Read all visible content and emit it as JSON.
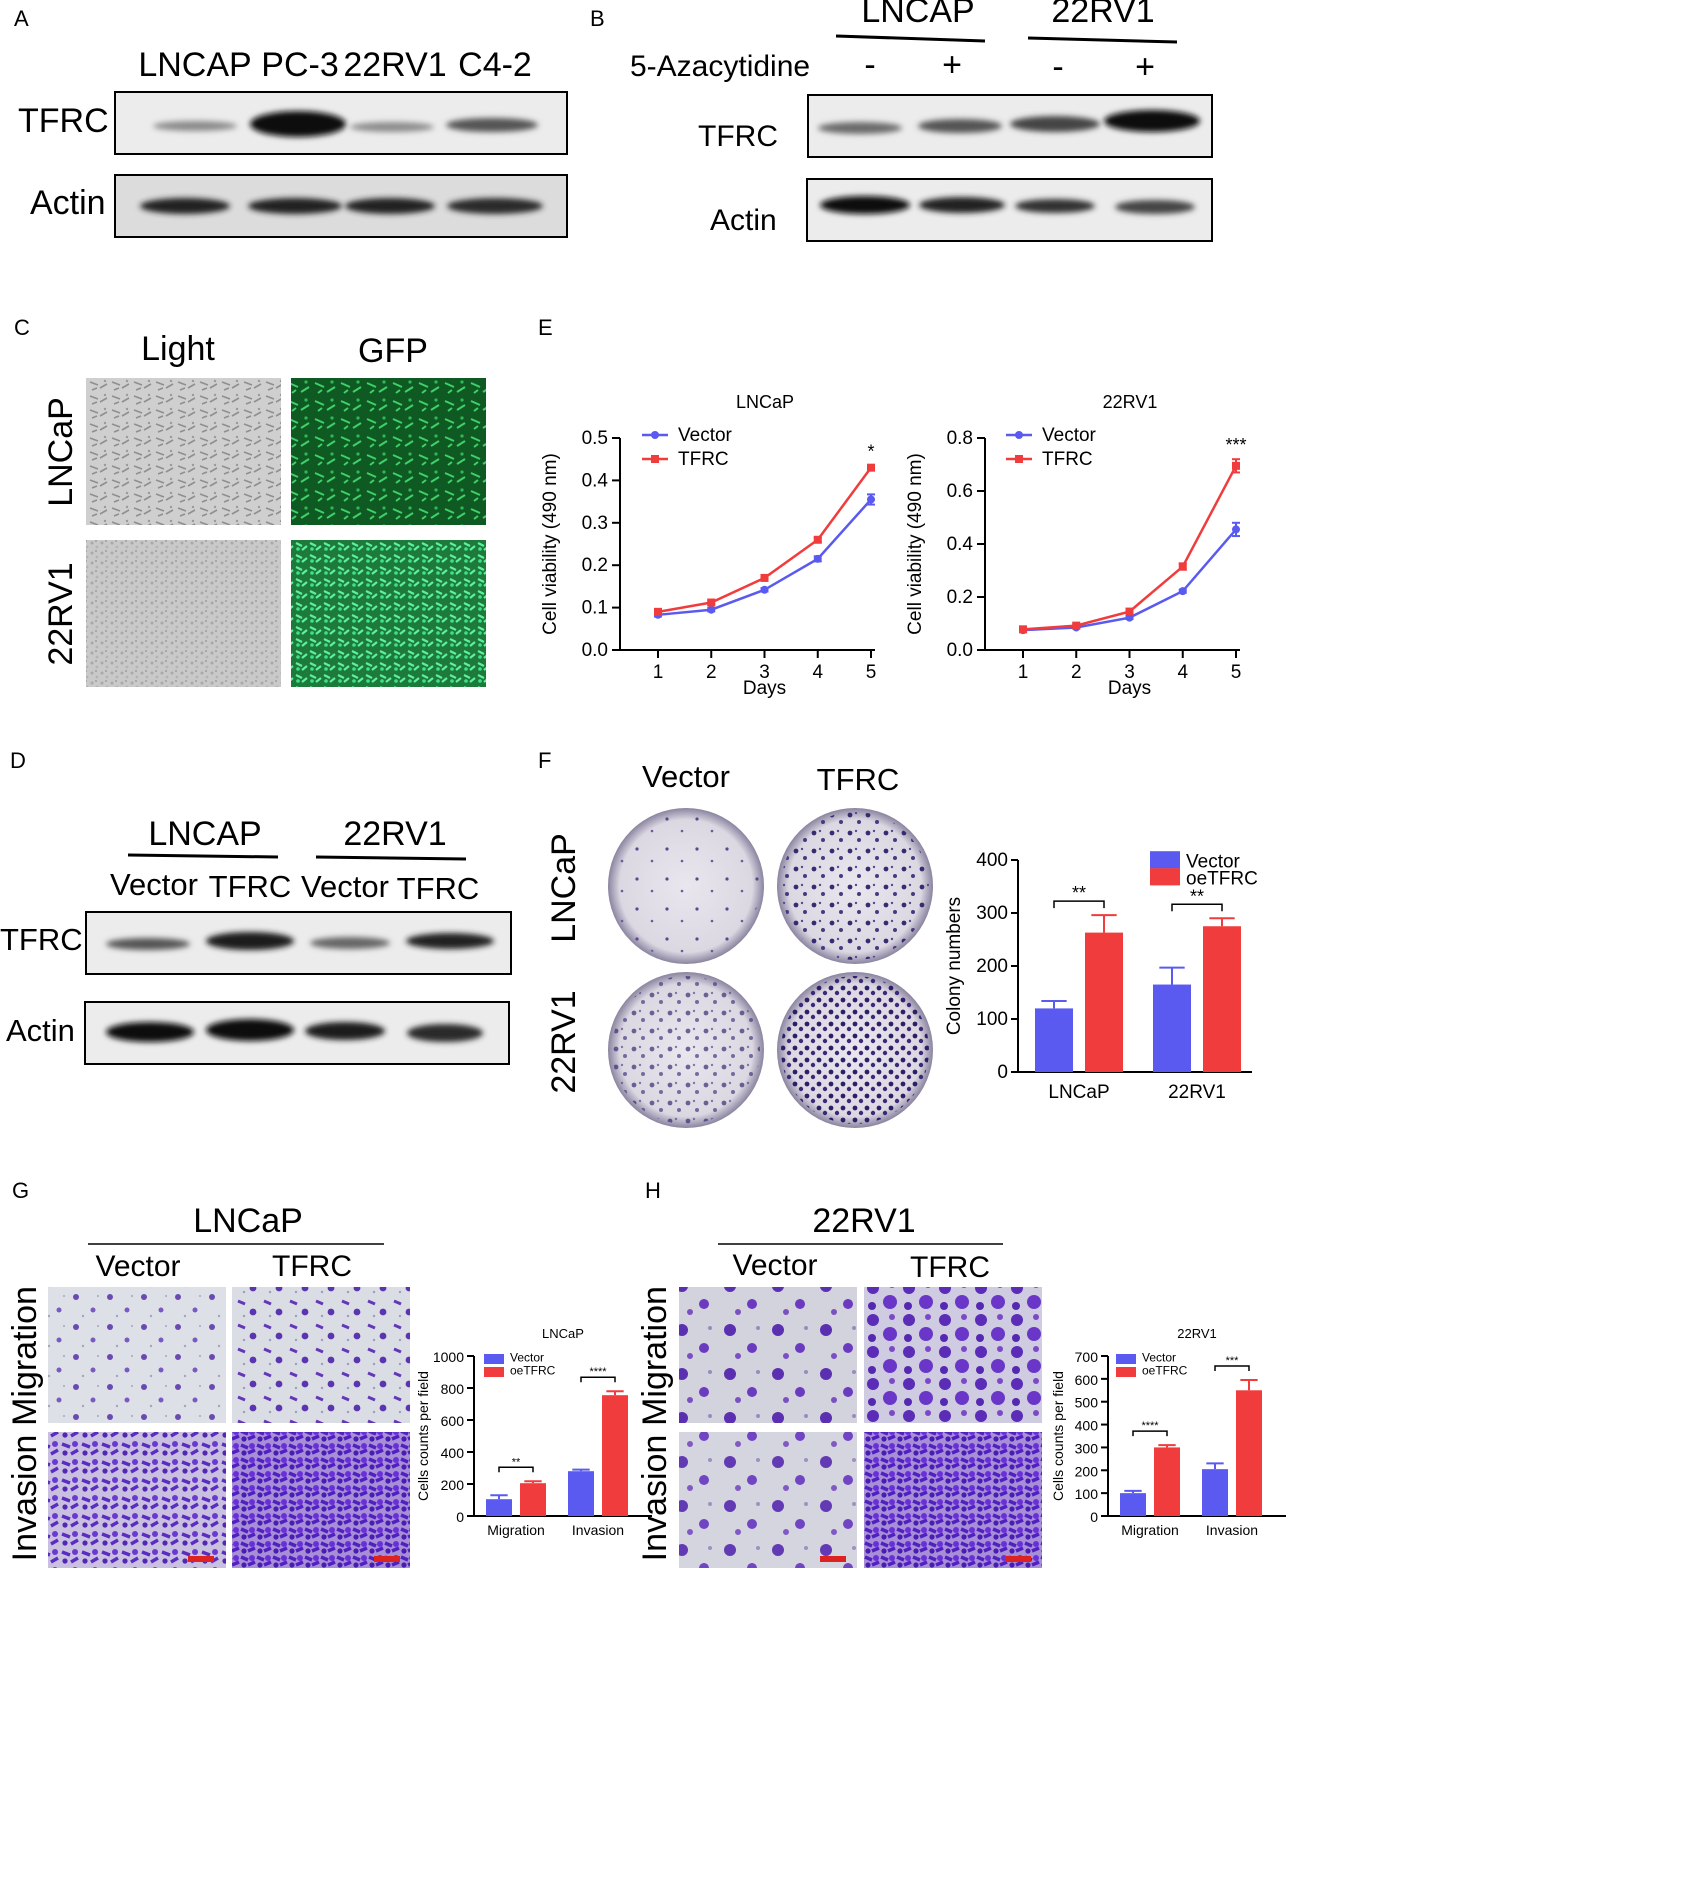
{
  "panels": {
    "A": {
      "letter": "A",
      "lanes": [
        "LNCAP",
        "PC-3",
        "22RV1",
        "C4-2"
      ],
      "rows": [
        "TFRC",
        "Actin"
      ]
    },
    "B": {
      "letter": "B",
      "groups": [
        "LNCAP",
        "22RV1"
      ],
      "treatment": "5-Azacytidine",
      "signs": [
        "-",
        "+",
        "-",
        "+"
      ],
      "rows": [
        "TFRC",
        "Actin"
      ]
    },
    "C": {
      "letter": "C",
      "columns": [
        "Light",
        "GFP"
      ],
      "rows": [
        "LNCaP",
        "22RV1"
      ]
    },
    "D": {
      "letter": "D",
      "groups": [
        "LNCAP",
        "22RV1"
      ],
      "lanes": [
        "Vector",
        "TFRC",
        "Vector",
        "TFRC"
      ],
      "rows": [
        "TFRC",
        "Actin"
      ]
    },
    "E": {
      "letter": "E"
    },
    "F": {
      "letter": "F",
      "columns": [
        "Vector",
        "TFRC"
      ],
      "rows": [
        "LNCaP",
        "22RV1"
      ]
    },
    "G": {
      "letter": "G",
      "title": "LNCaP",
      "columns": [
        "Vector",
        "TFRC"
      ],
      "rows": [
        "Migration",
        "Invasion"
      ]
    },
    "H": {
      "letter": "H",
      "title": "22RV1",
      "columns": [
        "Vector",
        "TFRC"
      ],
      "rows": [
        "Migration",
        "Invasion"
      ]
    }
  },
  "chart_data": [
    {
      "id": "E1",
      "type": "line",
      "title": "LNCaP",
      "xlabel": "Days",
      "ylabel": "Cell viability (490 nm)",
      "x": [
        1,
        2,
        3,
        4,
        5
      ],
      "xlim": [
        1,
        5
      ],
      "ylim": [
        0,
        0.5
      ],
      "yticks": [
        "0.0",
        "0.1",
        "0.2",
        "0.3",
        "0.4",
        "0.5"
      ],
      "legend": "top-left",
      "series": [
        {
          "name": "Vector",
          "color": "#5a5af0",
          "values": [
            0.083,
            0.095,
            0.142,
            0.215,
            0.355
          ],
          "err": [
            0.004,
            0.004,
            0.004,
            0.006,
            0.012
          ]
        },
        {
          "name": "TFRC",
          "color": "#f03c3c",
          "values": [
            0.09,
            0.112,
            0.17,
            0.26,
            0.43
          ],
          "err": [
            0.004,
            0.005,
            0.005,
            0.005,
            0.005
          ]
        }
      ],
      "annotations": [
        {
          "x": 5,
          "text": "*"
        }
      ]
    },
    {
      "id": "E2",
      "type": "line",
      "title": "22RV1",
      "xlabel": "Days",
      "ylabel": "Cell viability (490 nm)",
      "x": [
        1,
        2,
        3,
        4,
        5
      ],
      "xlim": [
        1,
        5
      ],
      "ylim": [
        0,
        0.8
      ],
      "yticks": [
        "0.0",
        "0.2",
        "0.4",
        "0.6",
        "0.8"
      ],
      "legend": "top-left",
      "series": [
        {
          "name": "Vector",
          "color": "#5a5af0",
          "values": [
            0.075,
            0.085,
            0.122,
            0.222,
            0.455
          ],
          "err": [
            0.004,
            0.004,
            0.005,
            0.006,
            0.025
          ]
        },
        {
          "name": "TFRC",
          "color": "#f03c3c",
          "values": [
            0.078,
            0.092,
            0.145,
            0.315,
            0.695
          ],
          "err": [
            0.004,
            0.005,
            0.006,
            0.012,
            0.025
          ]
        }
      ],
      "annotations": [
        {
          "x": 5,
          "text": "***"
        }
      ]
    },
    {
      "id": "F",
      "type": "bar",
      "title": "",
      "xlabel": "",
      "ylabel": "Colony numbers",
      "categories": [
        "LNCaP",
        "22RV1"
      ],
      "ylim": [
        0,
        400
      ],
      "yticks": [
        "0",
        "100",
        "200",
        "300",
        "400"
      ],
      "legend": "top-right",
      "series": [
        {
          "name": "Vector",
          "color": "#5a5af0",
          "values": [
            120,
            165
          ],
          "err": [
            14,
            32
          ]
        },
        {
          "name": "oeTFRC",
          "color": "#f03c3c",
          "values": [
            263,
            275
          ],
          "err": [
            33,
            15
          ]
        }
      ],
      "annotations": [
        "**",
        "**"
      ]
    },
    {
      "id": "G",
      "type": "bar",
      "title": "LNCaP",
      "xlabel": "",
      "ylabel": "Cells counts per field",
      "categories": [
        "Migration",
        "Invasion"
      ],
      "ylim": [
        0,
        1000
      ],
      "yticks": [
        "0",
        "200",
        "400",
        "600",
        "800",
        "1000"
      ],
      "legend": "top-left",
      "series": [
        {
          "name": "Vector",
          "color": "#5a5af0",
          "values": [
            105,
            280
          ],
          "err": [
            25,
            10
          ]
        },
        {
          "name": "oeTFRC",
          "color": "#f03c3c",
          "values": [
            205,
            755
          ],
          "err": [
            12,
            25
          ]
        }
      ],
      "annotations": [
        "**",
        "****"
      ]
    },
    {
      "id": "H",
      "type": "bar",
      "title": "22RV1",
      "xlabel": "",
      "ylabel": "Cells counts per field",
      "categories": [
        "Migration",
        "Invasion"
      ],
      "ylim": [
        0,
        700
      ],
      "yticks": [
        "0",
        "100",
        "200",
        "300",
        "400",
        "500",
        "600",
        "700"
      ],
      "legend": "top-left",
      "series": [
        {
          "name": "Vector",
          "color": "#5a5af0",
          "values": [
            100,
            205
          ],
          "err": [
            10,
            25
          ]
        },
        {
          "name": "oeTFRC",
          "color": "#f03c3c",
          "values": [
            300,
            550
          ],
          "err": [
            10,
            45
          ]
        }
      ],
      "annotations": [
        "****",
        "***"
      ]
    }
  ]
}
